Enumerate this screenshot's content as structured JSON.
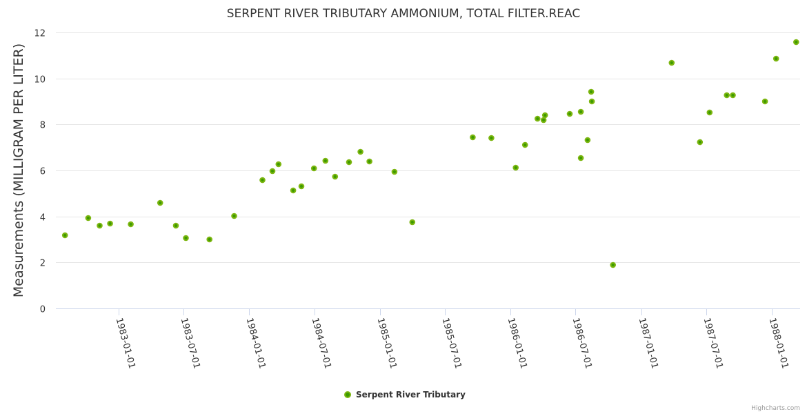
{
  "chart_data": {
    "type": "scatter",
    "title": "SERPENT RIVER TRIBUTARY AMMONIUM, TOTAL FILTER.REAC",
    "xlabel": "",
    "ylabel": "Measurements (MILLIGRAM PER LITER)",
    "ylim": [
      0,
      12
    ],
    "yticks": [
      0,
      2,
      4,
      6,
      8,
      10,
      12
    ],
    "xlim": [
      "1982-08-15",
      "1988-03-01"
    ],
    "xticks": [
      "1983-01-01",
      "1983-07-01",
      "1984-01-01",
      "1984-07-01",
      "1985-01-01",
      "1985-07-01",
      "1986-01-01",
      "1986-07-01",
      "1987-01-01",
      "1987-07-01",
      "1988-01-01"
    ],
    "grid": true,
    "legend": {
      "position": "bottom-center"
    },
    "series": [
      {
        "name": "Serpent River Tributary",
        "color": "#7cb610",
        "inner_color": "#3d9a00",
        "points": [
          {
            "x": "1982-08-04",
            "y": 3.18
          },
          {
            "x": "1982-10-08",
            "y": 3.93
          },
          {
            "x": "1982-11-09",
            "y": 3.6
          },
          {
            "x": "1982-12-08",
            "y": 3.69
          },
          {
            "x": "1983-02-04",
            "y": 3.66
          },
          {
            "x": "1983-04-27",
            "y": 4.59
          },
          {
            "x": "1983-06-10",
            "y": 3.6
          },
          {
            "x": "1983-07-08",
            "y": 3.06
          },
          {
            "x": "1983-09-12",
            "y": 3.0
          },
          {
            "x": "1983-11-20",
            "y": 4.02
          },
          {
            "x": "1984-02-07",
            "y": 5.58
          },
          {
            "x": "1984-03-06",
            "y": 5.97
          },
          {
            "x": "1984-03-23",
            "y": 6.27
          },
          {
            "x": "1984-05-03",
            "y": 5.13
          },
          {
            "x": "1984-05-26",
            "y": 5.31
          },
          {
            "x": "1984-06-30",
            "y": 6.09
          },
          {
            "x": "1984-08-01",
            "y": 6.42
          },
          {
            "x": "1984-08-28",
            "y": 5.73
          },
          {
            "x": "1984-10-06",
            "y": 6.36
          },
          {
            "x": "1984-11-07",
            "y": 6.81
          },
          {
            "x": "1984-12-02",
            "y": 6.39
          },
          {
            "x": "1985-02-10",
            "y": 5.94
          },
          {
            "x": "1985-04-01",
            "y": 3.75
          },
          {
            "x": "1985-09-17",
            "y": 7.44
          },
          {
            "x": "1985-11-08",
            "y": 7.41
          },
          {
            "x": "1986-01-15",
            "y": 6.12
          },
          {
            "x": "1986-02-10",
            "y": 7.11
          },
          {
            "x": "1986-03-17",
            "y": 8.25
          },
          {
            "x": "1986-04-03",
            "y": 8.19
          },
          {
            "x": "1986-04-07",
            "y": 8.4
          },
          {
            "x": "1986-06-15",
            "y": 8.46
          },
          {
            "x": "1986-07-16",
            "y": 8.55
          },
          {
            "x": "1986-07-16",
            "y": 6.54
          },
          {
            "x": "1986-08-04",
            "y": 7.32
          },
          {
            "x": "1986-08-14",
            "y": 9.42
          },
          {
            "x": "1986-08-16",
            "y": 9.0
          },
          {
            "x": "1986-10-14",
            "y": 1.89
          },
          {
            "x": "1987-03-27",
            "y": 10.68
          },
          {
            "x": "1987-06-14",
            "y": 7.23
          },
          {
            "x": "1987-07-11",
            "y": 8.52
          },
          {
            "x": "1987-08-28",
            "y": 9.27
          },
          {
            "x": "1987-09-14",
            "y": 9.27
          },
          {
            "x": "1987-12-13",
            "y": 9.0
          },
          {
            "x": "1988-01-13",
            "y": 10.86
          },
          {
            "x": "1988-03-09",
            "y": 11.58
          }
        ]
      }
    ]
  },
  "credits": "Highcharts.com"
}
